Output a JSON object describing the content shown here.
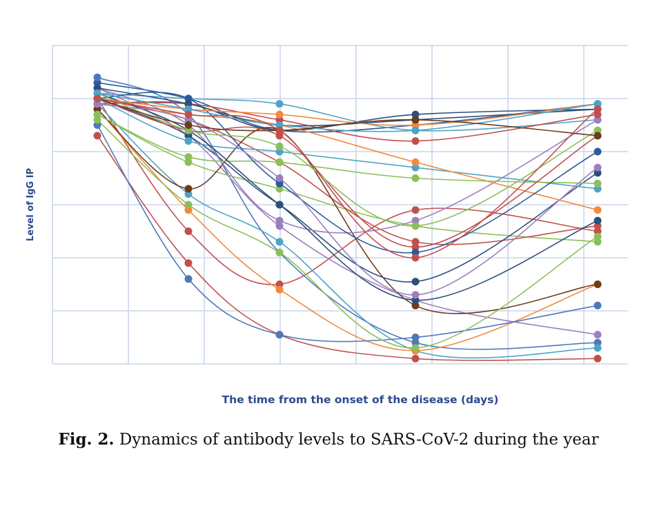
{
  "chart_data": {
    "type": "line",
    "title": "",
    "xlabel": "The time from the onset of the disease (days)",
    "ylabel": "Level of IgG IP",
    "x": [
      1,
      2,
      3,
      4,
      5
    ],
    "ylim": [
      0,
      6
    ],
    "grid": true,
    "legend": "none",
    "series": [
      {
        "color": "#2e5a9c",
        "values": [
          5.3,
          5.0,
          4.4,
          4.5,
          4.9
        ]
      },
      {
        "color": "#c0504d",
        "values": [
          5.0,
          2.5,
          1.5,
          2.9,
          2.5
        ]
      },
      {
        "color": "#4e78b8",
        "values": [
          5.4,
          4.7,
          2.1,
          0.4,
          0.4
        ]
      },
      {
        "color": "#9b7fc0",
        "values": [
          5.2,
          4.3,
          2.6,
          1.2,
          0.55
        ]
      },
      {
        "color": "#4fa3c7",
        "values": [
          4.9,
          3.2,
          2.3,
          0.25,
          0.3
        ]
      },
      {
        "color": "#f28a3d",
        "values": [
          4.8,
          2.9,
          1.4,
          0.25,
          1.5
        ]
      },
      {
        "color": "#8cbf5b",
        "values": [
          4.7,
          3.8,
          3.3,
          2.6,
          2.3
        ]
      },
      {
        "color": "#c0504d",
        "values": [
          4.3,
          1.9,
          0.55,
          0.1,
          0.1
        ]
      },
      {
        "color": "#2e4f7a",
        "values": [
          4.9,
          4.9,
          4.4,
          4.7,
          4.8
        ]
      },
      {
        "color": "#4fa3c7",
        "values": [
          5.1,
          5.0,
          4.9,
          4.4,
          4.6
        ]
      },
      {
        "color": "#c0504d",
        "values": [
          5.0,
          4.6,
          3.8,
          2.3,
          2.6
        ]
      },
      {
        "color": "#6a3d1f",
        "values": [
          4.8,
          3.3,
          4.4,
          1.1,
          1.5
        ]
      },
      {
        "color": "#4e78b8",
        "values": [
          4.5,
          1.6,
          0.55,
          0.5,
          1.1
        ]
      },
      {
        "color": "#8cbf5b",
        "values": [
          4.6,
          3.0,
          2.1,
          0.3,
          2.4
        ]
      },
      {
        "color": "#2e4f7a",
        "values": [
          5.0,
          4.3,
          3.0,
          1.55,
          3.6
        ]
      },
      {
        "color": "#9b7fc0",
        "values": [
          5.2,
          4.5,
          2.7,
          2.7,
          4.6
        ]
      },
      {
        "color": "#c0504d",
        "values": [
          4.9,
          4.9,
          4.6,
          4.2,
          4.7
        ]
      },
      {
        "color": "#4fa3c7",
        "values": [
          5.0,
          4.2,
          4.0,
          3.7,
          3.3
        ]
      },
      {
        "color": "#f28a3d",
        "values": [
          4.9,
          4.7,
          4.5,
          3.8,
          2.9
        ]
      },
      {
        "color": "#8cbf5b",
        "values": [
          4.7,
          3.9,
          3.8,
          3.5,
          3.4
        ]
      },
      {
        "color": "#2e4f7a",
        "values": [
          5.1,
          4.4,
          3.0,
          1.2,
          2.7
        ]
      },
      {
        "color": "#c0504d",
        "values": [
          5.0,
          4.4,
          4.3,
          2.2,
          4.3
        ]
      },
      {
        "color": "#2e5a9c",
        "values": [
          5.0,
          5.0,
          3.4,
          2.1,
          4.0
        ]
      },
      {
        "color": "#9b7fc0",
        "values": [
          4.9,
          4.6,
          3.5,
          1.3,
          3.7
        ]
      },
      {
        "color": "#8cbf5b",
        "values": [
          5.1,
          4.4,
          4.1,
          2.6,
          4.4
        ]
      },
      {
        "color": "#2e4f7a",
        "values": [
          5.2,
          4.9,
          4.5,
          4.6,
          4.8
        ]
      },
      {
        "color": "#f28a3d",
        "values": [
          5.0,
          4.8,
          4.7,
          4.5,
          4.9
        ]
      },
      {
        "color": "#4fa3c7",
        "values": [
          5.1,
          4.8,
          4.5,
          4.4,
          4.9
        ]
      },
      {
        "color": "#6a3d1f",
        "values": [
          5.0,
          4.5,
          4.4,
          4.6,
          4.3
        ]
      },
      {
        "color": "#c0504d",
        "values": [
          5.0,
          4.7,
          4.4,
          2.0,
          4.8
        ]
      }
    ]
  },
  "caption": {
    "label": "Fig. 2.",
    "text": " Dynamics of antibody levels to SARS-CoV-2 during the year"
  }
}
